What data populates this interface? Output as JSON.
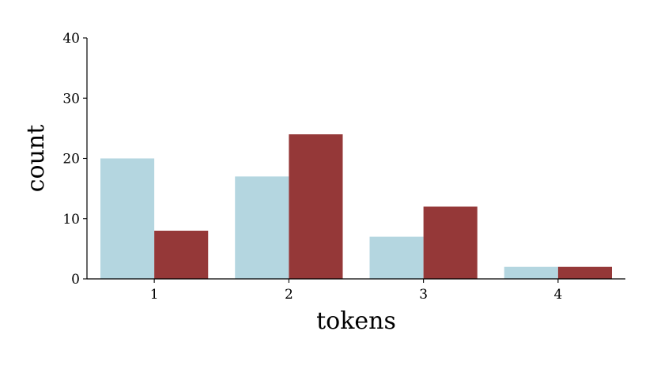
{
  "chart_data": {
    "type": "bar",
    "title": "",
    "xlabel": "tokens",
    "ylabel": "count",
    "categories": [
      "1",
      "2",
      "3",
      "4"
    ],
    "series": [
      {
        "values": [
          20,
          17,
          7,
          2
        ],
        "color": "#b4d6e0"
      },
      {
        "values": [
          8,
          24,
          12,
          2
        ],
        "color": "#953838"
      }
    ],
    "ylim": [
      0,
      40
    ],
    "yticks": [
      "0",
      "10",
      "20",
      "30",
      "40"
    ],
    "grid": false,
    "legend": "none",
    "spines": [
      "left",
      "bottom"
    ]
  }
}
